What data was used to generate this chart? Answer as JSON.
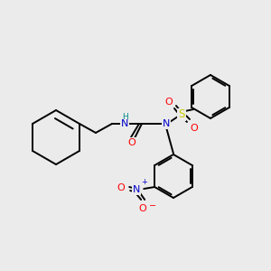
{
  "background_color": "#ebebeb",
  "bond_color": "#000000",
  "atom_colors": {
    "N": "#0000cc",
    "O": "#ff0000",
    "S": "#cccc00",
    "H": "#008b8b",
    "C": "#000000"
  },
  "figsize": [
    3.0,
    3.0
  ],
  "dpi": 100
}
